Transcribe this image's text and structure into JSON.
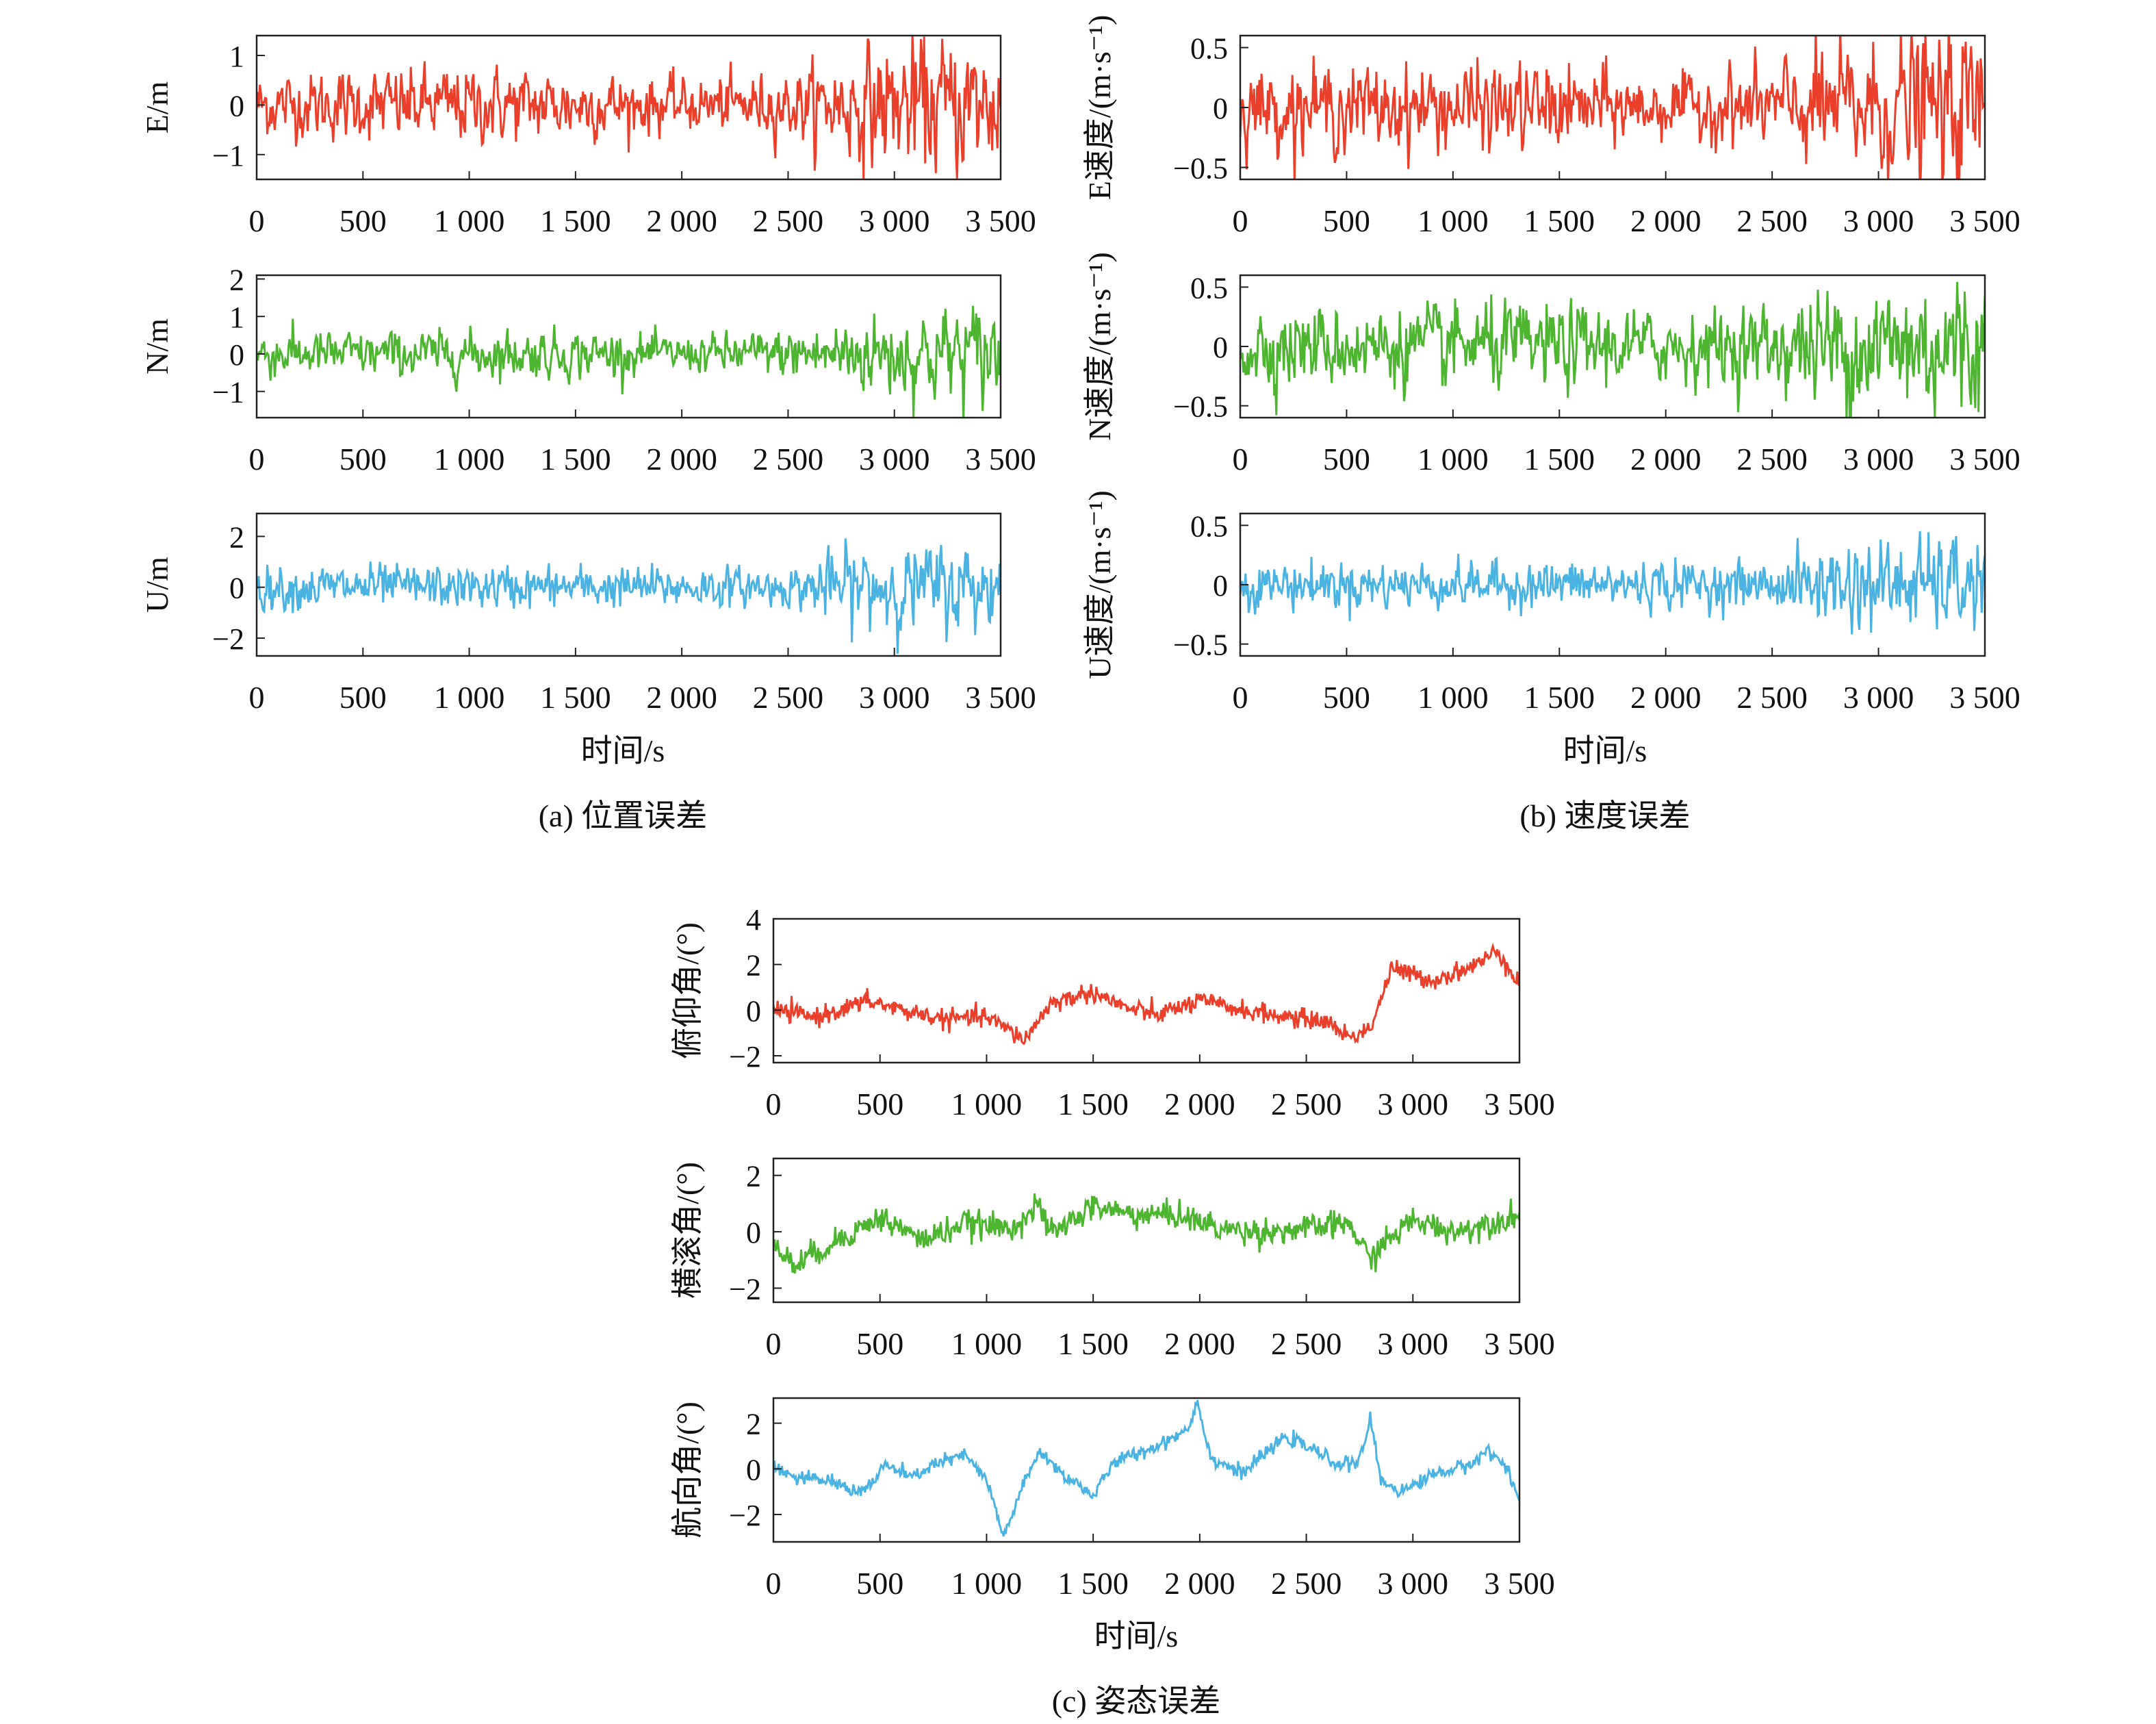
{
  "colors": {
    "red": "#ea3f2b",
    "green": "#4db530",
    "blue": "#4ab3e2",
    "axis": "#222222"
  },
  "groups": [
    {
      "id": "a",
      "caption": "(a) 位置误差",
      "xlabel": "时间/s"
    },
    {
      "id": "b",
      "caption": "(b) 速度误差",
      "xlabel": "时间/s"
    },
    {
      "id": "c",
      "caption": "(c) 姿态误差",
      "xlabel": "时间/s"
    }
  ],
  "chart_data": [
    {
      "type": "line",
      "group": "a",
      "ylabel": "E/m",
      "xlim": [
        0,
        3500
      ],
      "ylim": [
        -1.5,
        1.4
      ],
      "xticks": [
        0,
        500,
        1000,
        1500,
        2000,
        2500,
        3000,
        3500
      ],
      "xtick_labels": [
        "0",
        "500",
        "1 000",
        "1 500",
        "2 000",
        "2 500",
        "3 000",
        "3 500"
      ],
      "yticks": [
        -1,
        0,
        1
      ],
      "ytick_labels": [
        "−1",
        "0",
        "1"
      ],
      "color": "red",
      "envelope_x": [
        0,
        500,
        1000,
        1500,
        2000,
        2500,
        2800,
        3000,
        3500
      ],
      "envelope_y": [
        0.55,
        0.6,
        0.65,
        0.6,
        0.45,
        0.55,
        0.9,
        1.1,
        1.2
      ]
    },
    {
      "type": "line",
      "group": "a",
      "ylabel": "N/m",
      "xlim": [
        0,
        3500
      ],
      "ylim": [
        -1.7,
        2.1
      ],
      "xticks": [
        0,
        500,
        1000,
        1500,
        2000,
        2500,
        3000,
        3500
      ],
      "xtick_labels": [
        "0",
        "500",
        "1 000",
        "1 500",
        "2 000",
        "2 500",
        "3 000",
        "3 500"
      ],
      "yticks": [
        -1,
        0,
        1,
        2
      ],
      "ytick_labels": [
        "−1",
        "0",
        "1",
        "2"
      ],
      "color": "green",
      "envelope_x": [
        0,
        500,
        1000,
        1500,
        2000,
        2500,
        2800,
        3000,
        3500
      ],
      "envelope_y": [
        0.55,
        0.5,
        0.55,
        0.55,
        0.4,
        0.55,
        0.85,
        1.0,
        1.2
      ]
    },
    {
      "type": "line",
      "group": "a",
      "ylabel": "U/m",
      "xlim": [
        0,
        3500
      ],
      "ylim": [
        -2.7,
        2.9
      ],
      "xticks": [
        0,
        500,
        1000,
        1500,
        2000,
        2500,
        3000,
        3500
      ],
      "xtick_labels": [
        "0",
        "500",
        "1 000",
        "1 500",
        "2 000",
        "2 500",
        "3 000",
        "3 500"
      ],
      "yticks": [
        -2,
        0,
        2
      ],
      "ytick_labels": [
        "−2",
        "0",
        "2"
      ],
      "color": "blue",
      "envelope_x": [
        0,
        500,
        1000,
        1500,
        2000,
        2500,
        2800,
        3000,
        3500
      ],
      "envelope_y": [
        0.75,
        0.75,
        0.7,
        0.7,
        0.7,
        0.6,
        1.4,
        1.4,
        1.5
      ]
    },
    {
      "type": "line",
      "group": "b",
      "ylabel": "E速度/(m·s⁻¹)",
      "xlim": [
        0,
        3500
      ],
      "ylim": [
        -0.6,
        0.6
      ],
      "xticks": [
        0,
        500,
        1000,
        1500,
        2000,
        2500,
        3000,
        3500
      ],
      "xtick_labels": [
        "0",
        "500",
        "1 000",
        "1 500",
        "2 000",
        "2 500",
        "3 000",
        "3 500"
      ],
      "yticks": [
        -0.5,
        0,
        0.5
      ],
      "ytick_labels": [
        "−0.5",
        "0",
        "0.5"
      ],
      "color": "red",
      "envelope_x": [
        0,
        500,
        1000,
        1500,
        2000,
        2500,
        2800,
        3000,
        3500
      ],
      "envelope_y": [
        0.28,
        0.3,
        0.3,
        0.3,
        0.22,
        0.3,
        0.45,
        0.5,
        0.55
      ]
    },
    {
      "type": "line",
      "group": "b",
      "ylabel": "N速度/(m·s⁻¹)",
      "xlim": [
        0,
        3500
      ],
      "ylim": [
        -0.6,
        0.6
      ],
      "xticks": [
        0,
        500,
        1000,
        1500,
        2000,
        2500,
        3000,
        3500
      ],
      "xtick_labels": [
        "0",
        "500",
        "1 000",
        "1 500",
        "2 000",
        "2 500",
        "3 000",
        "3 500"
      ],
      "yticks": [
        -0.5,
        0,
        0.5
      ],
      "ytick_labels": [
        "−0.5",
        "0",
        "0.5"
      ],
      "color": "green",
      "envelope_x": [
        0,
        500,
        1000,
        1500,
        2000,
        2500,
        2800,
        3000,
        3500
      ],
      "envelope_y": [
        0.3,
        0.28,
        0.3,
        0.3,
        0.25,
        0.3,
        0.45,
        0.5,
        0.55
      ]
    },
    {
      "type": "line",
      "group": "b",
      "ylabel": "U速度/(m·s⁻¹)",
      "xlim": [
        0,
        3500
      ],
      "ylim": [
        -0.6,
        0.6
      ],
      "xticks": [
        0,
        500,
        1000,
        1500,
        2000,
        2500,
        3000,
        3500
      ],
      "xtick_labels": [
        "0",
        "500",
        "1 000",
        "1 500",
        "2 000",
        "2 500",
        "3 000",
        "3 500"
      ],
      "yticks": [
        -0.5,
        0,
        0.5
      ],
      "ytick_labels": [
        "−0.5",
        "0",
        "0.5"
      ],
      "color": "blue",
      "envelope_x": [
        0,
        500,
        1000,
        1500,
        2000,
        2500,
        2800,
        3000,
        3500
      ],
      "envelope_y": [
        0.17,
        0.17,
        0.16,
        0.17,
        0.17,
        0.16,
        0.33,
        0.32,
        0.33
      ]
    },
    {
      "type": "line",
      "group": "c",
      "ylabel": "俯仰角/(°)",
      "xlim": [
        0,
        3500
      ],
      "ylim": [
        -2.3,
        4.0
      ],
      "xticks": [
        0,
        500,
        1000,
        1500,
        2000,
        2500,
        3000,
        3500
      ],
      "xtick_labels": [
        "0",
        "500",
        "1 000",
        "1 500",
        "2 000",
        "2 500",
        "3 000",
        "3 500"
      ],
      "yticks": [
        -2,
        0,
        2,
        4
      ],
      "ytick_labels": [
        "−2",
        "0",
        "2",
        "4"
      ],
      "color": "red",
      "x": [
        0,
        200,
        450,
        600,
        800,
        1000,
        1180,
        1300,
        1500,
        1650,
        1800,
        2000,
        2200,
        2400,
        2600,
        2700,
        2800,
        2900,
        3100,
        3300,
        3400,
        3500
      ],
      "y": [
        0,
        -0.3,
        0.4,
        0,
        -0.4,
        -0.3,
        -1.3,
        0.3,
        0.8,
        0.1,
        -0.2,
        0.4,
        0,
        -0.3,
        -0.5,
        -1.2,
        -0.8,
        1.8,
        1.3,
        2.0,
        2.6,
        1.2
      ],
      "noise": 0.35
    },
    {
      "type": "line",
      "group": "c",
      "ylabel": "横滚角/(°)",
      "xlim": [
        0,
        3500
      ],
      "ylim": [
        -2.5,
        2.6
      ],
      "xticks": [
        0,
        500,
        1000,
        1500,
        2000,
        2500,
        3000,
        3500
      ],
      "xtick_labels": [
        "0",
        "500",
        "1 000",
        "1 500",
        "2 000",
        "2 500",
        "3 000",
        "3 500"
      ],
      "yticks": [
        -2,
        0,
        2
      ],
      "ytick_labels": [
        "−2",
        "0",
        "2"
      ],
      "color": "green",
      "x": [
        0,
        100,
        300,
        500,
        700,
        900,
        1100,
        1250,
        1300,
        1500,
        1700,
        1900,
        2100,
        2300,
        2500,
        2700,
        2800,
        2850,
        3000,
        3200,
        3400,
        3500
      ],
      "y": [
        -0.5,
        -1.2,
        -0.3,
        0.5,
        -0.3,
        0.3,
        0.1,
        0.9,
        -0.1,
        0.9,
        0.6,
        0.6,
        0.1,
        0,
        0.1,
        0.3,
        -1.0,
        -0.5,
        0.4,
        0,
        0.4,
        0.6
      ],
      "noise": 0.4
    },
    {
      "type": "line",
      "group": "c",
      "ylabel": "航向角/(°)",
      "xlim": [
        0,
        3500
      ],
      "ylim": [
        -3.2,
        3.1
      ],
      "xticks": [
        0,
        500,
        1000,
        1500,
        2000,
        2500,
        3000,
        3500
      ],
      "xtick_labels": [
        "0",
        "500",
        "1 000",
        "1 500",
        "2 000",
        "2 500",
        "3 000",
        "3 500"
      ],
      "yticks": [
        -2,
        0,
        2
      ],
      "ytick_labels": [
        "−2",
        "0",
        "2"
      ],
      "color": "blue",
      "x": [
        0,
        100,
        250,
        400,
        480,
        520,
        650,
        750,
        900,
        1000,
        1080,
        1150,
        1250,
        1350,
        1450,
        1500,
        1600,
        1800,
        1950,
        1990,
        2050,
        2200,
        2400,
        2500,
        2650,
        2750,
        2800,
        2850,
        2950,
        3100,
        3250,
        3350,
        3450,
        3500
      ],
      "y": [
        0.2,
        -0.4,
        -0.5,
        -1.0,
        -0.5,
        0.2,
        -0.4,
        0.2,
        0.6,
        -0.5,
        -3.0,
        -1.2,
        0.8,
        -0.2,
        -0.8,
        -1.2,
        0.3,
        1.0,
        1.8,
        3.0,
        0.5,
        -0.2,
        1.4,
        1.0,
        0.2,
        0.3,
        2.2,
        -0.5,
        -1.0,
        -0.2,
        0.1,
        0.8,
        0,
        -1.5
      ],
      "noise": 0.25
    }
  ]
}
